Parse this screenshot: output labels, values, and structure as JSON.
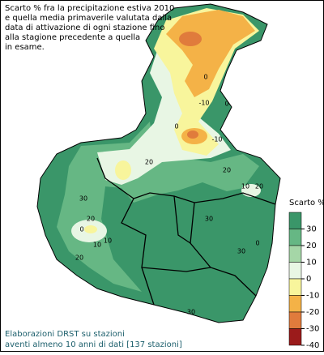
{
  "title": [
    "Scarto % fra la precipitazione estiva 2010",
    "e quella media primaverile valutata dalla",
    "data di attivazione di ogni stazione fino",
    "alla stagione precedente a quella",
    "in esame."
  ],
  "legend": {
    "title": "Scarto %",
    "labels": [
      30,
      20,
      10,
      0,
      -10,
      -20,
      -30,
      -40
    ],
    "colors": [
      "#3a9669",
      "#66b784",
      "#a5d6a7",
      "#e8f6e4",
      "#f8f59c",
      "#f4b247",
      "#e07b3c",
      "#9b1b1b"
    ]
  },
  "footer": [
    "Elaborazioni DRST su stazioni",
    "aventi almeno 10 anni di dati [137 stazioni]"
  ],
  "contour_labels": [
    0,
    -10,
    0,
    0,
    -10,
    0,
    10,
    20,
    20,
    30,
    20,
    10,
    0,
    10,
    20,
    30,
    30,
    20,
    30
  ]
}
